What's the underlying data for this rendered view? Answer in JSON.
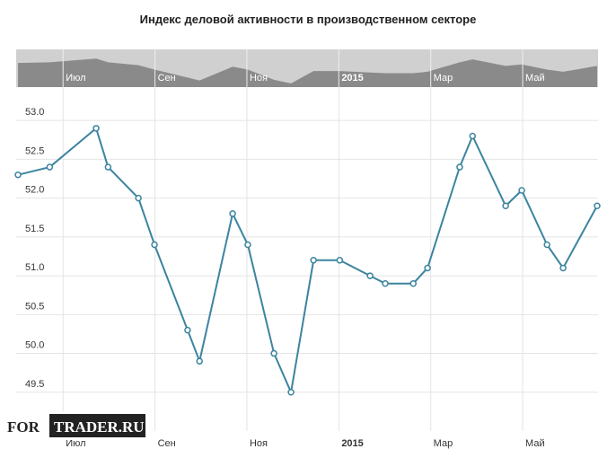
{
  "chart_data": {
    "type": "line",
    "title": "Индекс деловой активности в производственном секторе",
    "watermark": [
      "FOR",
      "TRADER.RU"
    ],
    "x": [
      -0.98,
      -0.29,
      0.72,
      0.98,
      1.64,
      1.99,
      2.71,
      2.97,
      3.69,
      4.02,
      4.59,
      4.96,
      5.45,
      6.02,
      6.68,
      7.01,
      7.62,
      7.93,
      8.63,
      8.91,
      9.63,
      9.98,
      10.53,
      10.88,
      11.62
    ],
    "series": [
      {
        "color": "#3c84a0",
        "values": [
          52.3,
          52.4,
          52.9,
          52.4,
          52.0,
          51.4,
          50.3,
          49.9,
          51.8,
          51.4,
          50.0,
          49.5,
          51.2,
          51.2,
          51.0,
          50.9,
          50.9,
          51.1,
          52.4,
          52.8,
          51.9,
          52.1,
          51.4,
          51.1,
          51.9
        ]
      }
    ],
    "xlim": [
      -1.02,
      11.64
    ],
    "xticks": [
      {
        "value": 0,
        "label": "Июл"
      },
      {
        "value": 2,
        "label": "Сен"
      },
      {
        "value": 4,
        "label": "Ноя"
      },
      {
        "value": 6,
        "label": "2015"
      },
      {
        "value": 8,
        "label": "Мар"
      },
      {
        "value": 10,
        "label": "Май"
      }
    ],
    "ylim": [
      49.0,
      53.43
    ],
    "yticks": [
      49.5,
      {
        "value": 50,
        "label": "50.0"
      },
      50.5,
      {
        "value": 51,
        "label": "51.0"
      },
      51.5,
      {
        "value": 52,
        "label": "52.0"
      },
      52.5,
      {
        "value": 53,
        "label": "53.0"
      }
    ],
    "grid": true
  }
}
